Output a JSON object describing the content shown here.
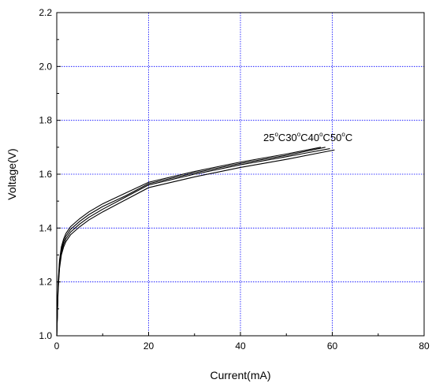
{
  "chart_data": {
    "type": "line",
    "xlabel": "Current(mA)",
    "ylabel": "Voltage(V)",
    "xlim": [
      0,
      80
    ],
    "ylim": [
      1.0,
      2.2
    ],
    "x_ticks": [
      "0",
      "20",
      "40",
      "60",
      "80"
    ],
    "y_ticks": [
      "1.0",
      "1.2",
      "1.4",
      "1.6",
      "1.8",
      "2.0",
      "2.2"
    ],
    "grid": true,
    "grid_color": "#0000ff",
    "line_color": "#000000",
    "annotation": {
      "parts": [
        {
          "base": "25",
          "sup": "o",
          "unit": "C"
        },
        {
          "base": "30",
          "sup": "o",
          "unit": "C"
        },
        {
          "base": "40",
          "sup": "o",
          "unit": "C"
        },
        {
          "base": "50",
          "sup": "o",
          "unit": "C"
        }
      ]
    },
    "series": [
      {
        "x": [
          0,
          0.3,
          0.6,
          1,
          1.5,
          2,
          3,
          4,
          5,
          7,
          10,
          15,
          20,
          30,
          40,
          50,
          57.5
        ],
        "y": [
          1.0,
          1.2,
          1.28,
          1.33,
          1.36,
          1.38,
          1.405,
          1.42,
          1.435,
          1.46,
          1.49,
          1.53,
          1.57,
          1.61,
          1.645,
          1.675,
          1.7
        ]
      },
      {
        "x": [
          0,
          0.3,
          0.6,
          1,
          1.5,
          2,
          3,
          4,
          5,
          7,
          10,
          15,
          20,
          30,
          40,
          50,
          58.5
        ],
        "y": [
          1.0,
          1.19,
          1.27,
          1.32,
          1.35,
          1.37,
          1.395,
          1.41,
          1.425,
          1.45,
          1.48,
          1.52,
          1.565,
          1.605,
          1.64,
          1.67,
          1.7
        ]
      },
      {
        "x": [
          0,
          0.3,
          0.6,
          1,
          1.5,
          2,
          3,
          4,
          5,
          7,
          10,
          15,
          20,
          30,
          40,
          50,
          59.5
        ],
        "y": [
          1.0,
          1.18,
          1.26,
          1.31,
          1.34,
          1.36,
          1.385,
          1.4,
          1.415,
          1.44,
          1.47,
          1.515,
          1.56,
          1.6,
          1.635,
          1.665,
          1.695
        ]
      },
      {
        "x": [
          0,
          0.3,
          0.6,
          1,
          1.5,
          2,
          3,
          4,
          5,
          7,
          10,
          15,
          20,
          30,
          40,
          50,
          60.5
        ],
        "y": [
          1.0,
          1.17,
          1.25,
          1.3,
          1.33,
          1.35,
          1.375,
          1.39,
          1.405,
          1.43,
          1.46,
          1.505,
          1.55,
          1.59,
          1.625,
          1.655,
          1.69
        ]
      }
    ]
  }
}
